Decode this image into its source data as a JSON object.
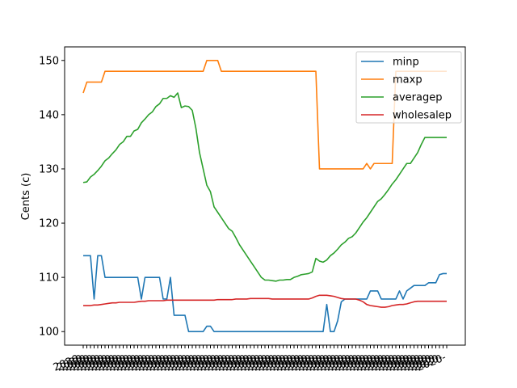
{
  "chart_data": {
    "type": "line",
    "title": "",
    "xlabel": "",
    "ylabel": "Cents (c)",
    "ylim": [
      97.5,
      152.5
    ],
    "yticks": [
      100,
      110,
      120,
      130,
      140,
      150
    ],
    "n_points": 101,
    "x_tick_label_sample": "2020-",
    "grid": false,
    "legend": "top-right",
    "series": [
      {
        "name": "minp",
        "color": "#1f77b4",
        "values": [
          114,
          114,
          114,
          106,
          114,
          114,
          110,
          110,
          110,
          110,
          110,
          110,
          110,
          110,
          110,
          110,
          106,
          110,
          110,
          110,
          110,
          110,
          106,
          106,
          110,
          103,
          103,
          103,
          103,
          100,
          100,
          100,
          100,
          100,
          101,
          101,
          100,
          100,
          100,
          100,
          100,
          100,
          100,
          100,
          100,
          100,
          100,
          100,
          100,
          100,
          100,
          100,
          100,
          100,
          100,
          100,
          100,
          100,
          100,
          100,
          100,
          100,
          100,
          100,
          100,
          100,
          100,
          105,
          100,
          100,
          102,
          105.5,
          106,
          106,
          106,
          106,
          106,
          106,
          106,
          107.5,
          107.5,
          107.5,
          106,
          106,
          106,
          106,
          106,
          107.5,
          106,
          107.5,
          108,
          108.5,
          108.5,
          108.5,
          108.5,
          109,
          109,
          109,
          110.5,
          110.7,
          110.7
        ]
      },
      {
        "name": "maxp",
        "color": "#ff7f0e",
        "values": [
          144,
          146,
          146,
          146,
          146,
          146,
          148,
          148,
          148,
          148,
          148,
          148,
          148,
          148,
          148,
          148,
          148,
          148,
          148,
          148,
          148,
          148,
          148,
          148,
          148,
          148,
          148,
          148,
          148,
          148,
          148,
          148,
          148,
          148,
          150,
          150,
          150,
          150,
          148,
          148,
          148,
          148,
          148,
          148,
          148,
          148,
          148,
          148,
          148,
          148,
          148,
          148,
          148,
          148,
          148,
          148,
          148,
          148,
          148,
          148,
          148,
          148,
          148,
          148,
          148,
          130,
          130,
          130,
          130,
          130,
          130,
          130,
          130,
          130,
          130,
          130,
          130,
          130,
          131,
          130,
          131,
          131,
          131,
          131,
          131,
          131,
          148,
          148,
          148,
          148,
          148,
          148,
          148,
          148,
          148,
          148,
          148,
          148,
          148,
          148,
          148
        ]
      },
      {
        "name": "averagep",
        "color": "#2ca02c",
        "values": [
          127.5,
          127.6,
          128.5,
          129,
          129.7,
          130.5,
          131.5,
          132,
          132.8,
          133.5,
          134.5,
          135,
          136,
          136,
          137,
          137.3,
          138.5,
          139.2,
          140,
          140.5,
          141.5,
          142,
          143,
          143,
          143.5,
          143.2,
          144,
          141.3,
          141.6,
          141.5,
          140.8,
          137.5,
          133,
          130,
          127,
          125.8,
          123,
          122,
          121,
          120,
          119,
          118.5,
          117.3,
          116,
          115,
          114,
          113,
          112,
          111,
          110,
          109.5,
          109.5,
          109.4,
          109.3,
          109.5,
          109.5,
          109.6,
          109.6,
          110,
          110.2,
          110.5,
          110.6,
          110.7,
          111,
          113.5,
          113,
          112.8,
          113.2,
          114,
          114.5,
          115.2,
          116,
          116.5,
          117.2,
          117.5,
          118.2,
          119.2,
          120.2,
          121,
          122,
          123,
          124,
          124.5,
          125.3,
          126.2,
          127.2,
          128,
          129,
          130,
          131,
          131,
          132,
          133,
          134.5,
          135.8,
          135.8,
          135.8,
          135.8,
          135.8,
          135.8,
          135.8
        ]
      },
      {
        "name": "wholesalep",
        "color": "#d62728",
        "values": [
          104.8,
          104.8,
          104.8,
          104.9,
          104.9,
          105,
          105.1,
          105.2,
          105.3,
          105.3,
          105.4,
          105.4,
          105.4,
          105.4,
          105.4,
          105.5,
          105.6,
          105.6,
          105.7,
          105.7,
          105.7,
          105.7,
          105.7,
          105.8,
          105.8,
          105.8,
          105.8,
          105.8,
          105.8,
          105.8,
          105.8,
          105.8,
          105.8,
          105.8,
          105.8,
          105.8,
          105.8,
          105.9,
          105.9,
          105.9,
          105.9,
          105.9,
          106,
          106,
          106,
          106,
          106.1,
          106.1,
          106.1,
          106.1,
          106.1,
          106.1,
          106,
          106,
          106,
          106,
          106,
          106,
          106,
          106,
          106,
          106,
          106,
          106.2,
          106.5,
          106.7,
          106.7,
          106.7,
          106.6,
          106.5,
          106.3,
          106.1,
          106,
          106,
          106,
          106,
          105.8,
          105.5,
          105,
          104.8,
          104.7,
          104.6,
          104.5,
          104.5,
          104.6,
          104.8,
          104.9,
          105,
          105,
          105.1,
          105.3,
          105.5,
          105.6,
          105.6,
          105.6,
          105.6,
          105.6,
          105.6,
          105.6,
          105.6,
          105.6
        ]
      }
    ]
  }
}
